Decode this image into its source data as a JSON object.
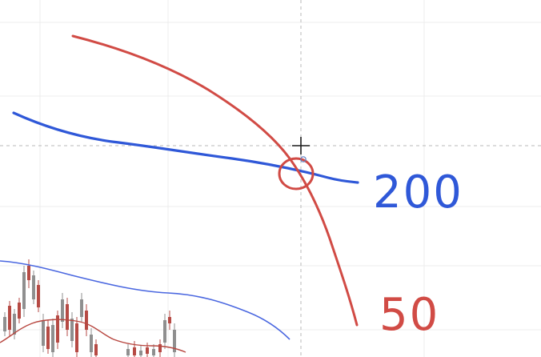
{
  "annotations": {
    "ma_slow_label": "200",
    "ma_fast_label": "50"
  },
  "colors": {
    "background": "#ffffff",
    "grid": "#ececec",
    "crosshair": "#b9b9b9",
    "ink_blue": "#2f58d8",
    "ink_red": "#d14b45",
    "price_ma_blue": "#4a67e0",
    "price_ma_red": "#b7463f",
    "candle_up": "#8f8f8f",
    "candle_down": "#b64a44"
  },
  "icons": {
    "cursor": "crosshair-cursor-icon"
  }
}
